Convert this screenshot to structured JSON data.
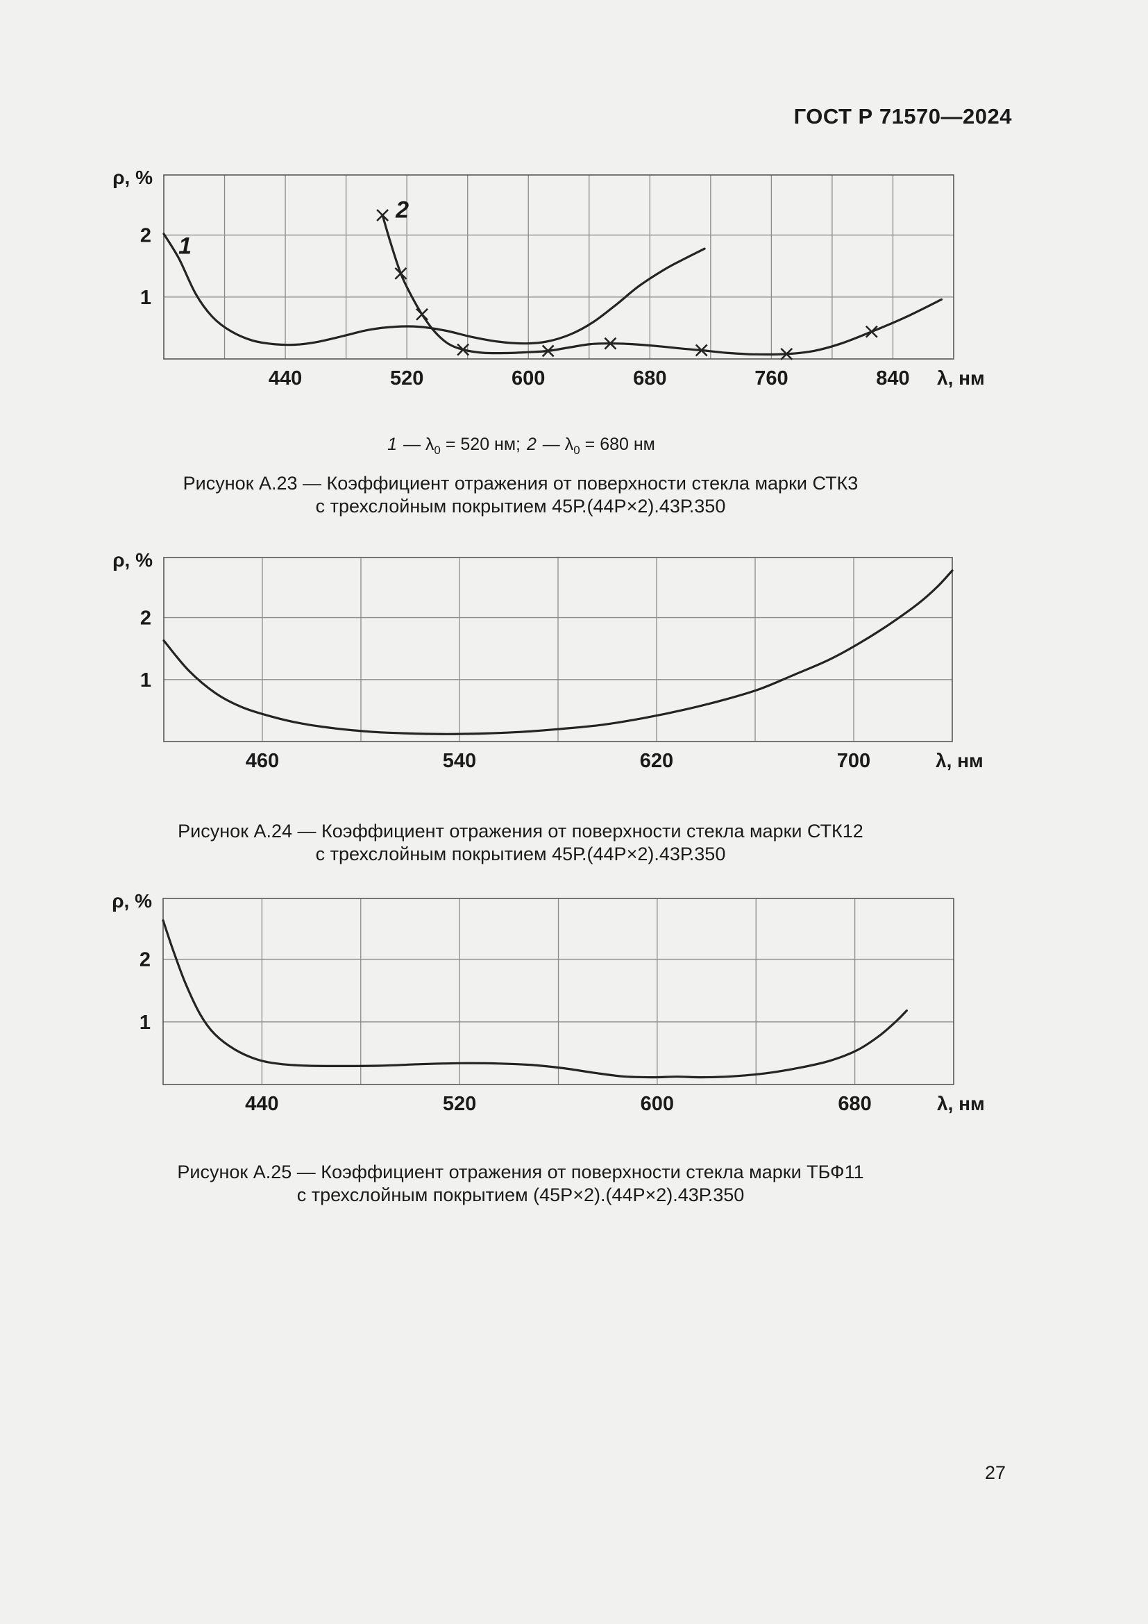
{
  "page": {
    "header": "ГОСТ Р 71570—2024",
    "page_number": "27",
    "colors": {
      "background": "#f1f1f0",
      "text": "#1a1a1a",
      "grid": "#8c8c8c",
      "axis_frame": "#606060",
      "curve": "#242424"
    }
  },
  "figures": [
    {
      "legend_parts": [
        {
          "text": "1",
          "style": "num"
        },
        {
          "text": " — λ",
          "style": "plain"
        },
        {
          "text": "0",
          "style": "sub"
        },
        {
          "text": " = 520 нм; ",
          "style": "plain"
        },
        {
          "text": "2",
          "style": "num"
        },
        {
          "text": " — λ",
          "style": "plain"
        },
        {
          "text": "0",
          "style": "sub"
        },
        {
          "text": " = 680 нм",
          "style": "plain"
        }
      ],
      "caption_line1": "Рисунок А.23 — Коэффициент отражения от поверхности стекла марки СТК3",
      "caption_line2": "с трехслойным покрытием 45Р.(44Р×2).43Р.350"
    },
    {
      "caption_line1": "Рисунок А.24 — Коэффициент отражения от поверхности стекла марки СТК12",
      "caption_line2": "с трехслойным покрытием 45Р.(44Р×2).43Р.350"
    },
    {
      "caption_line1": "Рисунок А.25 — Коэффициент отражения от поверхности стекла марки ТБФ11",
      "caption_line2": "с трехслойным покрытием (45Р×2).(44Р×2).43Р.350"
    }
  ],
  "chart_data": [
    {
      "type": "line",
      "title": "Рисунок А.23 — Коэффициент отражения от поверхности стекла марки СТК3 с трехслойным покрытием 45Р.(44Р×2).43Р.350",
      "xlabel": "λ, нм",
      "ylabel": "ρ, %",
      "xlim": [
        360,
        880
      ],
      "ylim": [
        0,
        2.97
      ],
      "x_grid_step": 40,
      "grid": true,
      "y_ticks": [
        {
          "v": 2,
          "label": "2"
        },
        {
          "v": 1,
          "label": "1"
        }
      ],
      "x_tick_labels": [
        {
          "v": 440,
          "label": "440"
        },
        {
          "v": 520,
          "label": "520"
        },
        {
          "v": 600,
          "label": "600"
        },
        {
          "v": 680,
          "label": "680"
        },
        {
          "v": 760,
          "label": "760"
        },
        {
          "v": 840,
          "label": "840"
        }
      ],
      "series": [
        {
          "name": "1 — λ0 = 520 нм",
          "marker": "none",
          "annotation": {
            "text": "1",
            "x": 374,
            "y": 1.7
          },
          "points": [
            [
              360,
              2.02
            ],
            [
              370,
              1.62
            ],
            [
              381,
              1.05
            ],
            [
              392,
              0.68
            ],
            [
              404,
              0.45
            ],
            [
              418,
              0.3
            ],
            [
              432,
              0.24
            ],
            [
              446,
              0.23
            ],
            [
              460,
              0.27
            ],
            [
              478,
              0.37
            ],
            [
              495,
              0.47
            ],
            [
              512,
              0.52
            ],
            [
              528,
              0.52
            ],
            [
              545,
              0.46
            ],
            [
              562,
              0.36
            ],
            [
              580,
              0.28
            ],
            [
              597,
              0.25
            ],
            [
              612,
              0.28
            ],
            [
              628,
              0.4
            ],
            [
              643,
              0.6
            ],
            [
              658,
              0.88
            ],
            [
              673,
              1.18
            ],
            [
              690,
              1.45
            ],
            [
              703,
              1.62
            ],
            [
              716,
              1.78
            ]
          ]
        },
        {
          "name": "2 — λ0 = 680 нм",
          "marker": "x",
          "annotation": {
            "text": "2",
            "x": 517,
            "y": 2.28
          },
          "points": [
            [
              504,
              2.32
            ],
            [
              509,
              1.9
            ],
            [
              516,
              1.38
            ],
            [
              523,
              1.02
            ],
            [
              530,
              0.72
            ],
            [
              538,
              0.45
            ],
            [
              547,
              0.25
            ],
            [
              557,
              0.15
            ],
            [
              570,
              0.1
            ],
            [
              585,
              0.095
            ],
            [
              600,
              0.11
            ],
            [
              613,
              0.13
            ],
            [
              628,
              0.19
            ],
            [
              641,
              0.24
            ],
            [
              654,
              0.25
            ],
            [
              668,
              0.24
            ],
            [
              684,
              0.21
            ],
            [
              700,
              0.17
            ],
            [
              714,
              0.14
            ],
            [
              730,
              0.1
            ],
            [
              748,
              0.075
            ],
            [
              770,
              0.08
            ],
            [
              788,
              0.13
            ],
            [
              806,
              0.25
            ],
            [
              826,
              0.44
            ],
            [
              848,
              0.67
            ],
            [
              872,
              0.96
            ]
          ],
          "marker_points": [
            [
              504,
              2.32
            ],
            [
              516,
              1.38
            ],
            [
              530,
              0.72
            ],
            [
              557,
              0.15
            ],
            [
              613,
              0.13
            ],
            [
              654,
              0.25
            ],
            [
              714,
              0.14
            ],
            [
              770,
              0.08
            ],
            [
              826,
              0.44
            ]
          ]
        }
      ]
    },
    {
      "type": "line",
      "title": "Рисунок А.24 — Коэффициент отражения от поверхности стекла марки СТК12 с трехслойным покрытием 45Р.(44Р×2).43Р.350",
      "xlabel": "λ, нм",
      "ylabel": "ρ, %",
      "xlim": [
        420,
        740
      ],
      "ylim": [
        0,
        2.97
      ],
      "x_grid_step": 40,
      "grid": true,
      "y_ticks": [
        {
          "v": 2,
          "label": "2"
        },
        {
          "v": 1,
          "label": "1"
        }
      ],
      "x_tick_labels": [
        {
          "v": 460,
          "label": "460"
        },
        {
          "v": 540,
          "label": "540"
        },
        {
          "v": 620,
          "label": "620"
        },
        {
          "v": 700,
          "label": "700"
        }
      ],
      "series": [
        {
          "name": "СТК12 45Р.(44Р×2).43Р.350",
          "marker": "none",
          "points": [
            [
              420,
              1.63
            ],
            [
              430,
              1.15
            ],
            [
              441,
              0.78
            ],
            [
              452,
              0.55
            ],
            [
              464,
              0.4
            ],
            [
              476,
              0.29
            ],
            [
              490,
              0.21
            ],
            [
              505,
              0.155
            ],
            [
              520,
              0.13
            ],
            [
              535,
              0.12
            ],
            [
              550,
              0.13
            ],
            [
              565,
              0.155
            ],
            [
              580,
              0.2
            ],
            [
              598,
              0.27
            ],
            [
              615,
              0.38
            ],
            [
              632,
              0.52
            ],
            [
              648,
              0.68
            ],
            [
              662,
              0.85
            ],
            [
              676,
              1.08
            ],
            [
              690,
              1.32
            ],
            [
              702,
              1.58
            ],
            [
              714,
              1.88
            ],
            [
              726,
              2.22
            ],
            [
              734,
              2.5
            ],
            [
              740,
              2.76
            ]
          ]
        }
      ]
    },
    {
      "type": "line",
      "title": "Рисунок А.25 — Коэффициент отражения от поверхности стекла марки ТБФ11 с трехслойным покрытием (45Р×2).(44Р×2).43Р.350",
      "xlabel": "λ, нм",
      "ylabel": "ρ, %",
      "xlim": [
        400,
        720
      ],
      "ylim": [
        0,
        2.97
      ],
      "x_grid_step": 40,
      "grid": true,
      "y_ticks": [
        {
          "v": 2,
          "label": "2"
        },
        {
          "v": 1,
          "label": "1"
        }
      ],
      "x_tick_labels": [
        {
          "v": 440,
          "label": "440"
        },
        {
          "v": 520,
          "label": "520"
        },
        {
          "v": 600,
          "label": "600"
        },
        {
          "v": 680,
          "label": "680"
        }
      ],
      "series": [
        {
          "name": "ТБФ11 (45Р×2).(44Р×2).43Р.350",
          "marker": "none",
          "points": [
            [
              400,
              2.62
            ],
            [
              404,
              2.15
            ],
            [
              409,
              1.62
            ],
            [
              415,
              1.12
            ],
            [
              421,
              0.8
            ],
            [
              429,
              0.56
            ],
            [
              438,
              0.4
            ],
            [
              447,
              0.33
            ],
            [
              458,
              0.3
            ],
            [
              472,
              0.295
            ],
            [
              488,
              0.3
            ],
            [
              504,
              0.325
            ],
            [
              520,
              0.34
            ],
            [
              536,
              0.335
            ],
            [
              550,
              0.31
            ],
            [
              562,
              0.26
            ],
            [
              574,
              0.19
            ],
            [
              586,
              0.13
            ],
            [
              598,
              0.115
            ],
            [
              608,
              0.125
            ],
            [
              618,
              0.115
            ],
            [
              630,
              0.13
            ],
            [
              644,
              0.18
            ],
            [
              658,
              0.27
            ],
            [
              670,
              0.38
            ],
            [
              681,
              0.55
            ],
            [
              690,
              0.78
            ],
            [
              697,
              1.02
            ],
            [
              701,
              1.18
            ]
          ]
        }
      ]
    }
  ]
}
